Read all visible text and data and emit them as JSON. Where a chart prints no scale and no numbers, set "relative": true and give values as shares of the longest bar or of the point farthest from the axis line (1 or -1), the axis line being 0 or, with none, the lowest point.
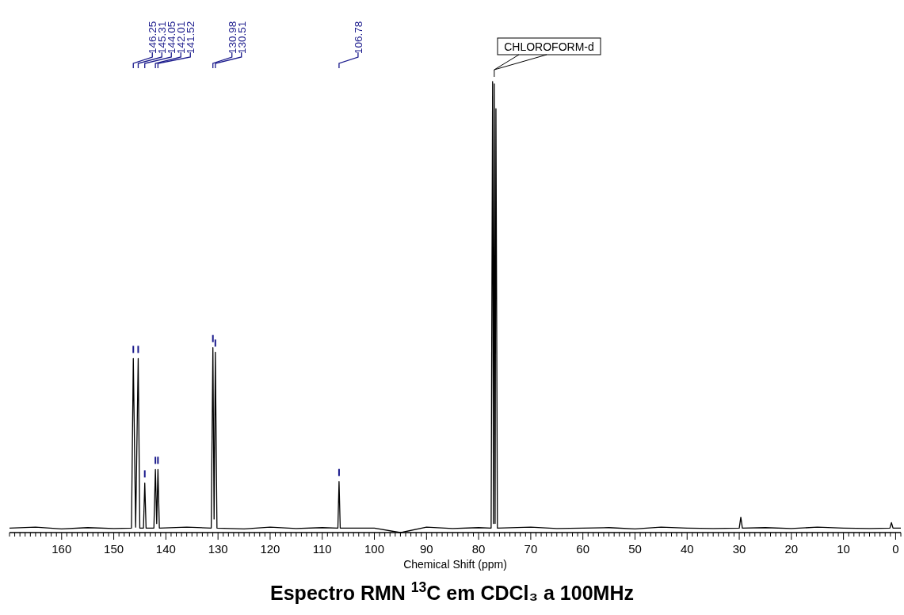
{
  "chart_data": {
    "type": "line",
    "title": "Espectro RMN $^{13}$C em CDCl₃ a 100MHz",
    "xlabel": "Chemical Shift (ppm)",
    "relative": true,
    "x": [
      170,
      165,
      160,
      155,
      150,
      146.6,
      146.25,
      145.8,
      145.31,
      145.0,
      144.3,
      144.05,
      143.8,
      142.3,
      142.01,
      141.76,
      141.52,
      141.25,
      136,
      131.3,
      130.98,
      130.75,
      130.51,
      130.2,
      125,
      120,
      115,
      110,
      107.0,
      106.78,
      106.55,
      100,
      95,
      90,
      85,
      80,
      77.6,
      77.32,
      77.16,
      77.0,
      76.84,
      76.68,
      76.4,
      70,
      65,
      60,
      55,
      50,
      45,
      40,
      35,
      30.0,
      29.7,
      29.4,
      25,
      20,
      15,
      10,
      5,
      1.1,
      0.8,
      0.5,
      -1
    ],
    "series": [
      {
        "color": "#000000",
        "values": [
          0.01,
          0.012,
          0.008,
          0.011,
          0.009,
          0.01,
          0.386,
          0.012,
          0.386,
          0.01,
          0.01,
          0.11,
          0.01,
          0.01,
          0.14,
          0.02,
          0.14,
          0.01,
          0.012,
          0.01,
          0.41,
          0.03,
          0.4,
          0.01,
          0.008,
          0.012,
          0.009,
          0.011,
          0.01,
          0.113,
          0.01,
          0.01,
          0,
          0.012,
          0.009,
          0.011,
          0.01,
          1.0,
          0.02,
          0.995,
          0.02,
          0.94,
          0.01,
          0.012,
          0.009,
          0.01,
          0.011,
          0.008,
          0.012,
          0.01,
          0.009,
          0.01,
          0.034,
          0.01,
          0.011,
          0.009,
          0.012,
          0.01,
          0.009,
          0.01,
          0.022,
          0.01,
          0.01
        ]
      }
    ],
    "xlim": [
      170,
      -1
    ],
    "xticks": [
      {
        "value": 170,
        "label": null
      },
      {
        "value": 169,
        "label": null
      },
      {
        "value": 168,
        "label": null
      },
      {
        "value": 167,
        "label": null
      },
      {
        "value": 166,
        "label": null
      },
      {
        "value": 165,
        "label": null
      },
      {
        "value": 164,
        "label": null
      },
      {
        "value": 163,
        "label": null
      },
      {
        "value": 162,
        "label": null
      },
      {
        "value": 161,
        "label": null
      },
      160,
      {
        "value": 159,
        "label": null
      },
      {
        "value": 158,
        "label": null
      },
      {
        "value": 157,
        "label": null
      },
      {
        "value": 156,
        "label": null
      },
      {
        "value": 155,
        "label": null
      },
      {
        "value": 154,
        "label": null
      },
      {
        "value": 153,
        "label": null
      },
      {
        "value": 152,
        "label": null
      },
      {
        "value": 151,
        "label": null
      },
      150,
      {
        "value": 149,
        "label": null
      },
      {
        "value": 148,
        "label": null
      },
      {
        "value": 147,
        "label": null
      },
      {
        "value": 146,
        "label": null
      },
      {
        "value": 145,
        "label": null
      },
      {
        "value": 144,
        "label": null
      },
      {
        "value": 143,
        "label": null
      },
      {
        "value": 142,
        "label": null
      },
      {
        "value": 141,
        "label": null
      },
      140,
      {
        "value": 139,
        "label": null
      },
      {
        "value": 138,
        "label": null
      },
      {
        "value": 137,
        "label": null
      },
      {
        "value": 136,
        "label": null
      },
      {
        "value": 135,
        "label": null
      },
      {
        "value": 134,
        "label": null
      },
      {
        "value": 133,
        "label": null
      },
      {
        "value": 132,
        "label": null
      },
      {
        "value": 131,
        "label": null
      },
      130,
      {
        "value": 129,
        "label": null
      },
      {
        "value": 128,
        "label": null
      },
      {
        "value": 127,
        "label": null
      },
      {
        "value": 126,
        "label": null
      },
      {
        "value": 125,
        "label": null
      },
      {
        "value": 124,
        "label": null
      },
      {
        "value": 123,
        "label": null
      },
      {
        "value": 122,
        "label": null
      },
      {
        "value": 121,
        "label": null
      },
      120,
      {
        "value": 119,
        "label": null
      },
      {
        "value": 118,
        "label": null
      },
      {
        "value": 117,
        "label": null
      },
      {
        "value": 116,
        "label": null
      },
      {
        "value": 115,
        "label": null
      },
      {
        "value": 114,
        "label": null
      },
      {
        "value": 113,
        "label": null
      },
      {
        "value": 112,
        "label": null
      },
      {
        "value": 111,
        "label": null
      },
      110,
      {
        "value": 109,
        "label": null
      },
      {
        "value": 108,
        "label": null
      },
      {
        "value": 107,
        "label": null
      },
      {
        "value": 106,
        "label": null
      },
      {
        "value": 105,
        "label": null
      },
      {
        "value": 104,
        "label": null
      },
      {
        "value": 103,
        "label": null
      },
      {
        "value": 102,
        "label": null
      },
      {
        "value": 101,
        "label": null
      },
      100,
      {
        "value": 99,
        "label": null
      },
      {
        "value": 98,
        "label": null
      },
      {
        "value": 97,
        "label": null
      },
      {
        "value": 96,
        "label": null
      },
      {
        "value": 95,
        "label": null
      },
      {
        "value": 94,
        "label": null
      },
      {
        "value": 93,
        "label": null
      },
      {
        "value": 92,
        "label": null
      },
      {
        "value": 91,
        "label": null
      },
      90,
      {
        "value": 89,
        "label": null
      },
      {
        "value": 88,
        "label": null
      },
      {
        "value": 87,
        "label": null
      },
      {
        "value": 86,
        "label": null
      },
      {
        "value": 85,
        "label": null
      },
      {
        "value": 84,
        "label": null
      },
      {
        "value": 83,
        "label": null
      },
      {
        "value": 82,
        "label": null
      },
      {
        "value": 81,
        "label": null
      },
      80,
      {
        "value": 79,
        "label": null
      },
      {
        "value": 78,
        "label": null
      },
      {
        "value": 77,
        "label": null
      },
      {
        "value": 76,
        "label": null
      },
      {
        "value": 75,
        "label": null
      },
      {
        "value": 74,
        "label": null
      },
      {
        "value": 73,
        "label": null
      },
      {
        "value": 72,
        "label": null
      },
      {
        "value": 71,
        "label": null
      },
      70,
      {
        "value": 69,
        "label": null
      },
      {
        "value": 68,
        "label": null
      },
      {
        "value": 67,
        "label": null
      },
      {
        "value": 66,
        "label": null
      },
      {
        "value": 65,
        "label": null
      },
      {
        "value": 64,
        "label": null
      },
      {
        "value": 63,
        "label": null
      },
      {
        "value": 62,
        "label": null
      },
      {
        "value": 61,
        "label": null
      },
      60,
      {
        "value": 59,
        "label": null
      },
      {
        "value": 58,
        "label": null
      },
      {
        "value": 57,
        "label": null
      },
      {
        "value": 56,
        "label": null
      },
      {
        "value": 55,
        "label": null
      },
      {
        "value": 54,
        "label": null
      },
      {
        "value": 53,
        "label": null
      },
      {
        "value": 52,
        "label": null
      },
      {
        "value": 51,
        "label": null
      },
      50,
      {
        "value": 49,
        "label": null
      },
      {
        "value": 48,
        "label": null
      },
      {
        "value": 47,
        "label": null
      },
      {
        "value": 46,
        "label": null
      },
      {
        "value": 45,
        "label": null
      },
      {
        "value": 44,
        "label": null
      },
      {
        "value": 43,
        "label": null
      },
      {
        "value": 42,
        "label": null
      },
      {
        "value": 41,
        "label": null
      },
      40,
      {
        "value": 39,
        "label": null
      },
      {
        "value": 38,
        "label": null
      },
      {
        "value": 37,
        "label": null
      },
      {
        "value": 36,
        "label": null
      },
      {
        "value": 35,
        "label": null
      },
      {
        "value": 34,
        "label": null
      },
      {
        "value": 33,
        "label": null
      },
      {
        "value": 32,
        "label": null
      },
      {
        "value": 31,
        "label": null
      },
      30,
      {
        "value": 29,
        "label": null
      },
      {
        "value": 28,
        "label": null
      },
      {
        "value": 27,
        "label": null
      },
      {
        "value": 26,
        "label": null
      },
      {
        "value": 25,
        "label": null
      },
      {
        "value": 24,
        "label": null
      },
      {
        "value": 23,
        "label": null
      },
      {
        "value": 22,
        "label": null
      },
      {
        "value": 21,
        "label": null
      },
      20,
      {
        "value": 19,
        "label": null
      },
      {
        "value": 18,
        "label": null
      },
      {
        "value": 17,
        "label": null
      },
      {
        "value": 16,
        "label": null
      },
      {
        "value": 15,
        "label": null
      },
      {
        "value": 14,
        "label": null
      },
      {
        "value": 13,
        "label": null
      },
      {
        "value": 12,
        "label": null
      },
      {
        "value": 11,
        "label": null
      },
      10,
      {
        "value": 9,
        "label": null
      },
      {
        "value": 8,
        "label": null
      },
      {
        "value": 7,
        "label": null
      },
      {
        "value": 6,
        "label": null
      },
      {
        "value": 5,
        "label": null
      },
      {
        "value": 4,
        "label": null
      },
      {
        "value": 3,
        "label": null
      },
      {
        "value": 2,
        "label": null
      },
      {
        "value": 1,
        "label": null
      },
      0,
      {
        "value": -1,
        "label": null
      }
    ],
    "annotations": [
      {
        "text": "146.25",
        "x": 146.25
      },
      {
        "text": "145.31",
        "x": 145.31
      },
      {
        "text": "144.05",
        "x": 144.05
      },
      {
        "text": "142.01",
        "x": 142.01
      },
      {
        "text": "141.52",
        "x": 141.52
      },
      {
        "text": "130.98",
        "x": 130.98
      },
      {
        "text": "130.51",
        "x": 130.51
      },
      {
        "text": "106.78",
        "x": 106.78
      },
      {
        "text": "CHLOROFORM-d",
        "x": 77.0,
        "y": 1.0
      }
    ]
  }
}
